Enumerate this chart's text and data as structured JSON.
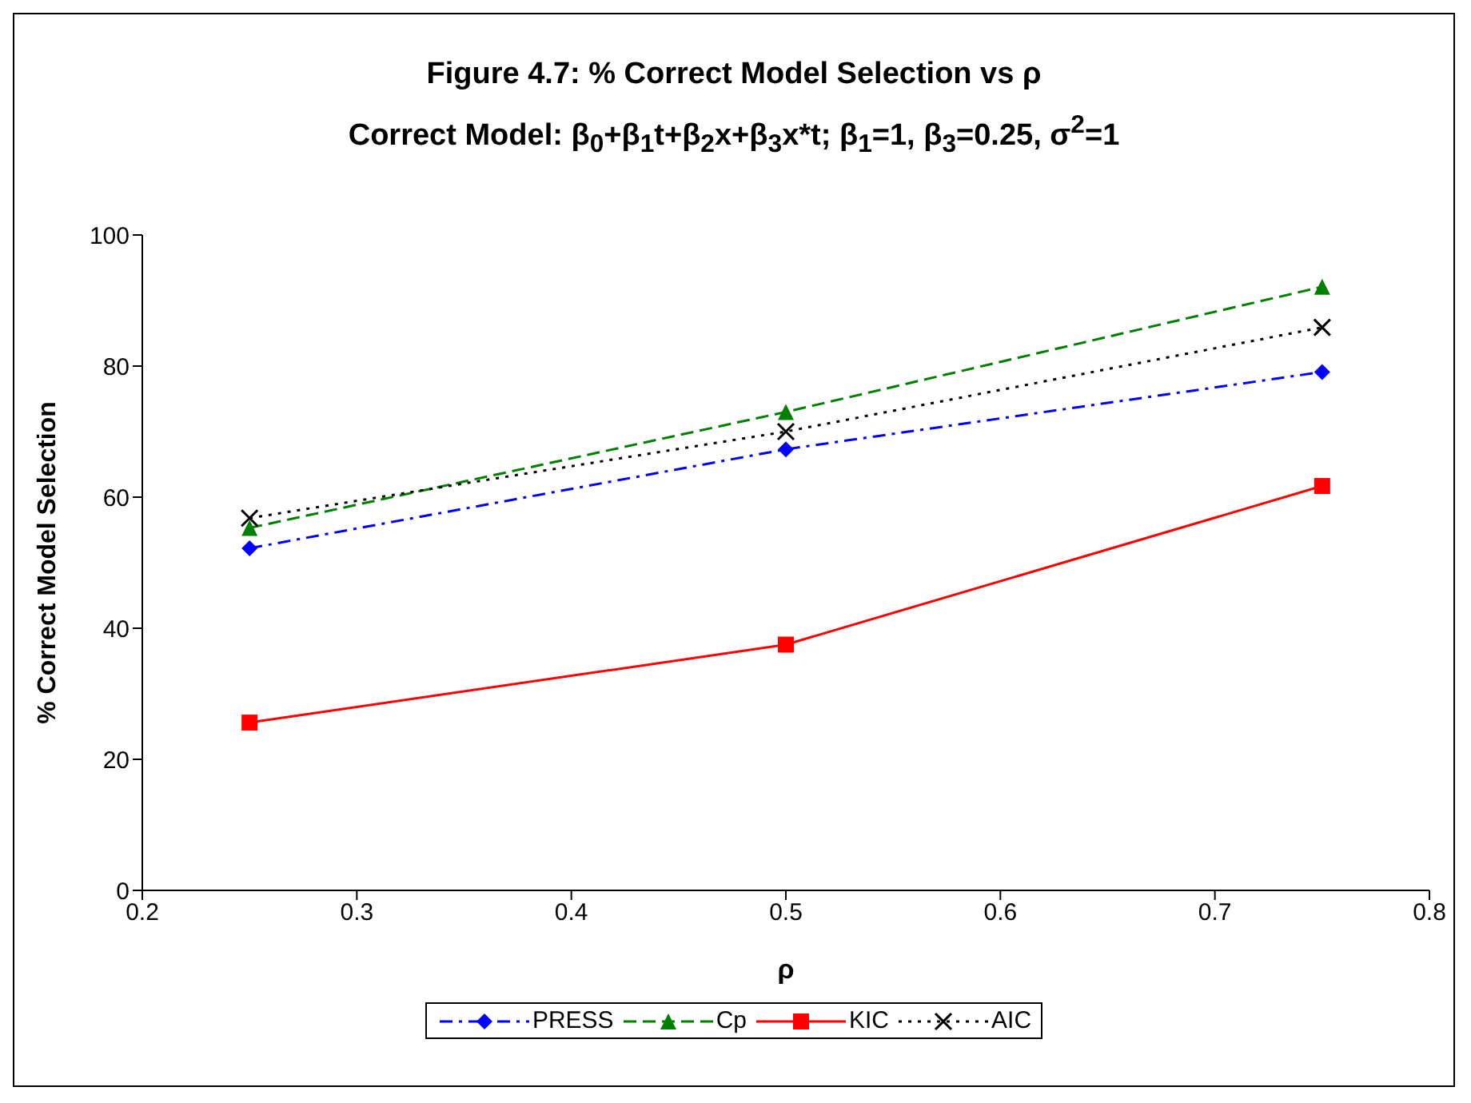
{
  "chart_data": {
    "type": "line",
    "title": "Figure 4.7: % Correct Model Selection vs ρ",
    "subtitle": "Correct Model: β$_{0}$+β$_{1}$t+β$_{2}$x+β$_{3}$x*t; β$_{1}$=1, β$_{3}$=0.25, σ$^{2}$=1",
    "xlabel": "ρ",
    "ylabel": "% Correct Model Selection",
    "x": [
      0.25,
      0.5,
      0.75
    ],
    "series": [
      {
        "name": "PRESS",
        "color": "#0000ff",
        "values": [
          52.2,
          67.3,
          79.1
        ],
        "marker": "diamond",
        "line_style": "dashdot"
      },
      {
        "name": "Cp",
        "color": "#008000",
        "values": [
          55.3,
          73.0,
          92.1
        ],
        "marker": "triangle",
        "line_style": "dashed"
      },
      {
        "name": "KIC",
        "color": "#ff0000",
        "values": [
          25.6,
          37.5,
          61.7
        ],
        "marker": "square",
        "line_style": "solid"
      },
      {
        "name": "AIC",
        "color": "#000000",
        "values": [
          56.8,
          70.0,
          85.9
        ],
        "marker": "cross",
        "line_style": "dotted"
      }
    ],
    "xlim": [
      0.2,
      0.8
    ],
    "xticks": [
      0.2,
      0.3,
      0.4,
      0.5,
      0.6,
      0.7,
      0.8
    ],
    "ylim": [
      0,
      100
    ],
    "yticks": [
      0,
      20,
      40,
      60,
      80,
      100
    ],
    "grid": false,
    "legend": "bottom"
  }
}
